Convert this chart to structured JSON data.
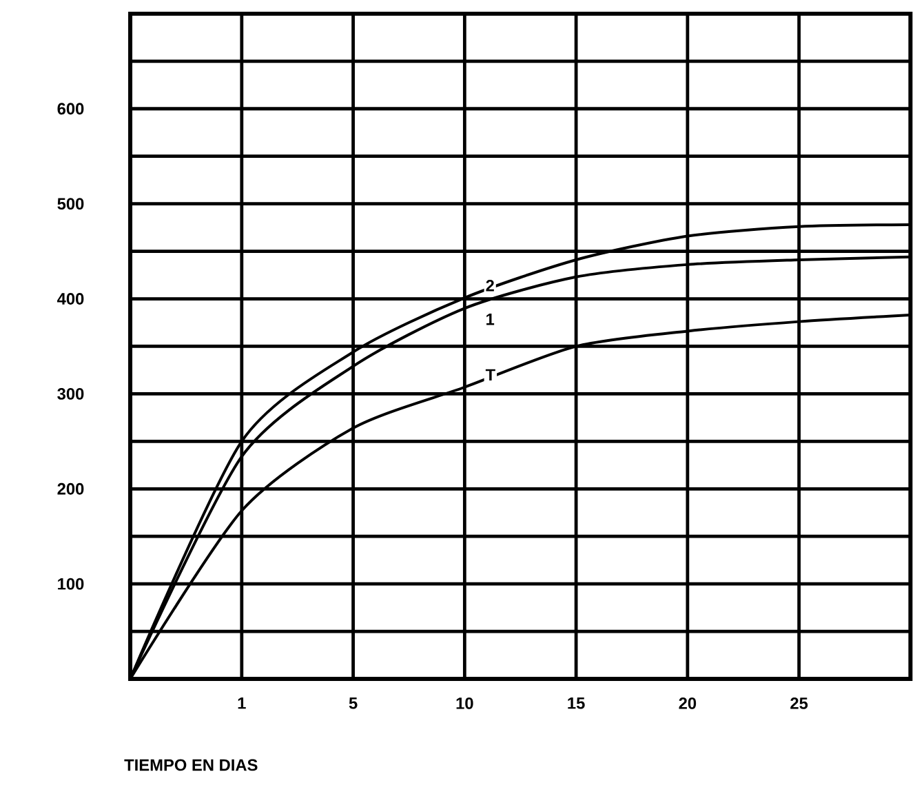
{
  "chart_data": {
    "type": "line",
    "xlabel": "TIEMPO EN DIAS",
    "grid": true,
    "categories": [
      null,
      "1",
      "5",
      "10",
      "15",
      "20",
      "25",
      null
    ],
    "ylim": [
      0,
      700
    ],
    "yticks": [
      100,
      200,
      300,
      400,
      500,
      600
    ],
    "series": [
      {
        "name": "2",
        "color": "#000000",
        "values": [
          0,
          250,
          344,
          401,
          441,
          466,
          476,
          478
        ]
      },
      {
        "name": "1",
        "color": "#000000",
        "values": [
          0,
          234,
          329,
          390,
          423,
          436,
          441,
          444
        ]
      },
      {
        "name": "T",
        "color": "#000000",
        "values": [
          0,
          177,
          264,
          307,
          350,
          366,
          376,
          383
        ]
      }
    ]
  }
}
